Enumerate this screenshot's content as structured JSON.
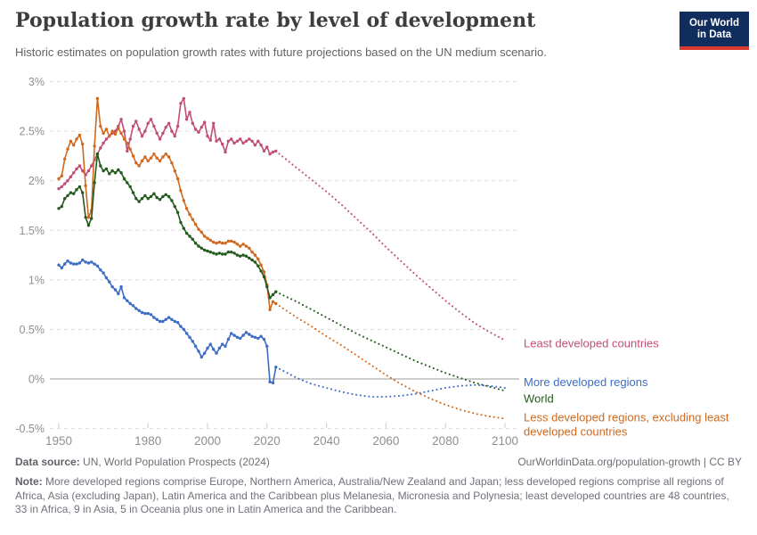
{
  "header": {
    "title": "Population growth rate by level of development",
    "subtitle": "Historic estimates on population growth rates with future projections based on the UN medium scenario.",
    "logo": {
      "line1": "Our World",
      "line2": "in Data",
      "bg_color": "#102d5e",
      "bar_color": "#d93a2e"
    }
  },
  "chart_data": {
    "type": "line",
    "unit": "%",
    "grid": true,
    "projection_start_year": 2023,
    "x_axis": {
      "range": [
        1950,
        2100
      ],
      "ticks": [
        1950,
        1980,
        2000,
        2020,
        2040,
        2060,
        2080,
        2100
      ]
    },
    "y_axis": {
      "range": [
        -0.5,
        3
      ],
      "ticks": [
        {
          "value": 3,
          "label": "3%"
        },
        {
          "value": 2.5,
          "label": "2.5%"
        },
        {
          "value": 2,
          "label": "2%"
        },
        {
          "value": 1.5,
          "label": "1.5%"
        },
        {
          "value": 1,
          "label": "1%"
        },
        {
          "value": 0.5,
          "label": "0.5%"
        },
        {
          "value": 0,
          "label": "0%"
        },
        {
          "value": -0.5,
          "label": "-0.5%"
        }
      ]
    },
    "series": [
      {
        "name": "Least developed countries",
        "label_lines": [
          "Least developed countries"
        ],
        "color": "#c14e79",
        "historic_start_year": 1950,
        "historic_values": [
          1.92,
          1.94,
          1.97,
          2.0,
          2.04,
          2.08,
          2.12,
          2.15,
          2.1,
          2.06,
          2.1,
          2.15,
          2.21,
          2.27,
          2.33,
          2.38,
          2.42,
          2.45,
          2.48,
          2.5,
          2.55,
          2.62,
          2.5,
          2.3,
          2.42,
          2.55,
          2.6,
          2.52,
          2.45,
          2.5,
          2.58,
          2.62,
          2.55,
          2.48,
          2.42,
          2.48,
          2.54,
          2.58,
          2.5,
          2.45,
          2.55,
          2.78,
          2.83,
          2.62,
          2.69,
          2.58,
          2.52,
          2.49,
          2.54,
          2.59,
          2.45,
          2.41,
          2.58,
          2.4,
          2.42,
          2.37,
          2.29,
          2.4,
          2.42,
          2.38,
          2.4,
          2.42,
          2.38,
          2.4,
          2.42,
          2.4,
          2.36,
          2.4,
          2.36,
          2.3,
          2.34,
          2.27,
          2.29,
          2.3
        ],
        "projection_years": [
          2023,
          2025,
          2030,
          2035,
          2040,
          2045,
          2050,
          2055,
          2060,
          2065,
          2070,
          2075,
          2080,
          2085,
          2090,
          2095,
          2100
        ],
        "projection_values": [
          2.3,
          2.25,
          2.13,
          2.01,
          1.89,
          1.76,
          1.62,
          1.48,
          1.33,
          1.19,
          1.05,
          0.92,
          0.79,
          0.67,
          0.56,
          0.47,
          0.39
        ]
      },
      {
        "name": "Less developed regions, excluding least developed countries",
        "label_lines": [
          "Less developed regions, excluding least",
          "developed countries"
        ],
        "color": "#d0691f",
        "historic_start_year": 1950,
        "historic_values": [
          2.02,
          2.05,
          2.22,
          2.32,
          2.4,
          2.36,
          2.42,
          2.46,
          2.37,
          1.95,
          1.63,
          1.7,
          2.35,
          2.83,
          2.55,
          2.48,
          2.52,
          2.45,
          2.5,
          2.47,
          2.53,
          2.48,
          2.42,
          2.38,
          2.32,
          2.25,
          2.18,
          2.15,
          2.2,
          2.24,
          2.2,
          2.23,
          2.27,
          2.23,
          2.2,
          2.24,
          2.27,
          2.24,
          2.18,
          2.1,
          2.02,
          1.9,
          1.8,
          1.72,
          1.66,
          1.61,
          1.56,
          1.51,
          1.48,
          1.44,
          1.42,
          1.4,
          1.38,
          1.37,
          1.38,
          1.37,
          1.37,
          1.39,
          1.39,
          1.38,
          1.36,
          1.34,
          1.36,
          1.34,
          1.32,
          1.28,
          1.25,
          1.21,
          1.15,
          1.08,
          0.95,
          0.7,
          0.78,
          0.76
        ],
        "projection_years": [
          2023,
          2025,
          2030,
          2035,
          2040,
          2045,
          2050,
          2055,
          2060,
          2065,
          2070,
          2075,
          2080,
          2085,
          2090,
          2095,
          2100
        ],
        "projection_values": [
          0.76,
          0.72,
          0.62,
          0.53,
          0.43,
          0.34,
          0.24,
          0.14,
          0.04,
          -0.05,
          -0.13,
          -0.2,
          -0.26,
          -0.31,
          -0.35,
          -0.38,
          -0.4
        ]
      },
      {
        "name": "World",
        "label_lines": [
          "World"
        ],
        "color": "#235b1d",
        "historic_start_year": 1950,
        "historic_values": [
          1.72,
          1.74,
          1.82,
          1.85,
          1.88,
          1.87,
          1.91,
          1.94,
          1.88,
          1.63,
          1.55,
          1.62,
          1.98,
          2.27,
          2.15,
          2.1,
          2.12,
          2.07,
          2.1,
          2.08,
          2.11,
          2.08,
          2.02,
          1.98,
          1.94,
          1.88,
          1.82,
          1.79,
          1.82,
          1.85,
          1.82,
          1.84,
          1.87,
          1.83,
          1.81,
          1.84,
          1.86,
          1.84,
          1.8,
          1.74,
          1.68,
          1.58,
          1.52,
          1.47,
          1.44,
          1.41,
          1.37,
          1.34,
          1.32,
          1.3,
          1.29,
          1.28,
          1.27,
          1.26,
          1.27,
          1.26,
          1.26,
          1.28,
          1.28,
          1.27,
          1.25,
          1.24,
          1.25,
          1.24,
          1.22,
          1.2,
          1.18,
          1.14,
          1.09,
          1.03,
          0.93,
          0.82,
          0.85,
          0.88
        ],
        "projection_years": [
          2023,
          2025,
          2030,
          2035,
          2040,
          2045,
          2050,
          2055,
          2060,
          2065,
          2070,
          2075,
          2080,
          2085,
          2090,
          2095,
          2100
        ],
        "projection_values": [
          0.88,
          0.85,
          0.78,
          0.7,
          0.62,
          0.54,
          0.46,
          0.39,
          0.32,
          0.25,
          0.18,
          0.12,
          0.06,
          0.01,
          -0.04,
          -0.08,
          -0.12
        ]
      },
      {
        "name": "More developed regions",
        "label_lines": [
          "More developed regions"
        ],
        "color": "#3d6dc5",
        "historic_start_year": 1950,
        "historic_values": [
          1.15,
          1.12,
          1.16,
          1.19,
          1.17,
          1.16,
          1.16,
          1.17,
          1.2,
          1.18,
          1.17,
          1.18,
          1.16,
          1.14,
          1.1,
          1.07,
          1.02,
          0.98,
          0.93,
          0.9,
          0.86,
          0.93,
          0.82,
          0.79,
          0.76,
          0.74,
          0.71,
          0.69,
          0.67,
          0.66,
          0.66,
          0.65,
          0.62,
          0.6,
          0.58,
          0.58,
          0.6,
          0.62,
          0.6,
          0.58,
          0.57,
          0.53,
          0.5,
          0.46,
          0.42,
          0.38,
          0.33,
          0.28,
          0.22,
          0.26,
          0.31,
          0.35,
          0.3,
          0.26,
          0.31,
          0.35,
          0.33,
          0.4,
          0.46,
          0.44,
          0.42,
          0.41,
          0.44,
          0.47,
          0.45,
          0.43,
          0.42,
          0.41,
          0.43,
          0.4,
          0.33,
          -0.03,
          -0.04,
          0.12
        ],
        "projection_years": [
          2023,
          2025,
          2030,
          2035,
          2040,
          2045,
          2050,
          2055,
          2060,
          2065,
          2070,
          2075,
          2080,
          2085,
          2090,
          2095,
          2100
        ],
        "projection_values": [
          0.12,
          0.09,
          0.01,
          -0.05,
          -0.09,
          -0.13,
          -0.16,
          -0.18,
          -0.18,
          -0.17,
          -0.15,
          -0.12,
          -0.09,
          -0.07,
          -0.06,
          -0.07,
          -0.09
        ]
      }
    ],
    "colors": {
      "grid": "#dedede",
      "zero_line": "#9b9b9b",
      "axis_text": "#8f8f8f"
    }
  },
  "footer": {
    "data_source_label": "Data source:",
    "data_source_value": "UN, World Population Prospects (2024)",
    "link": "OurWorldinData.org/population-growth | CC BY",
    "note_label": "Note:",
    "note_text": "More developed regions comprise Europe, Northern America, Australia/New Zealand and Japan; less developed regions comprise all regions of Africa, Asia (excluding Japan), Latin America and the Caribbean plus Melanesia, Micronesia and Polynesia; least developed countries are 48 countries, 33 in Africa, 9 in Asia, 5 in Oceania plus one in Latin America and the Caribbean."
  }
}
